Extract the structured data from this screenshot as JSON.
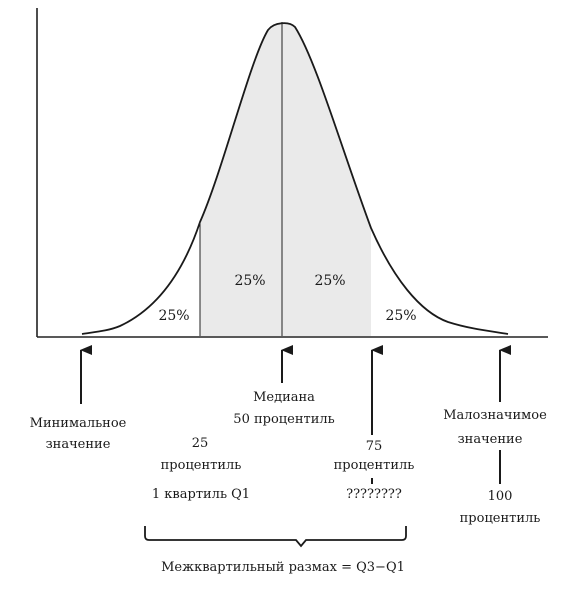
{
  "regions": {
    "q1": "25%",
    "q2": "25%",
    "q3": "25%",
    "q4": "25%"
  },
  "labels": {
    "minimum": [
      "Минимальное",
      "значение"
    ],
    "median": [
      "Медиана",
      "50 процентиль"
    ],
    "p25": [
      "25",
      "процентиль",
      "1 квартиль Q1"
    ],
    "p75": [
      "75",
      "процентиль",
      "????????"
    ],
    "maximum": [
      "Малозначимое",
      "значение"
    ],
    "p100": [
      "100",
      "процентиль"
    ],
    "iqr": "Межквартильный размах = Q3−Q1"
  }
}
